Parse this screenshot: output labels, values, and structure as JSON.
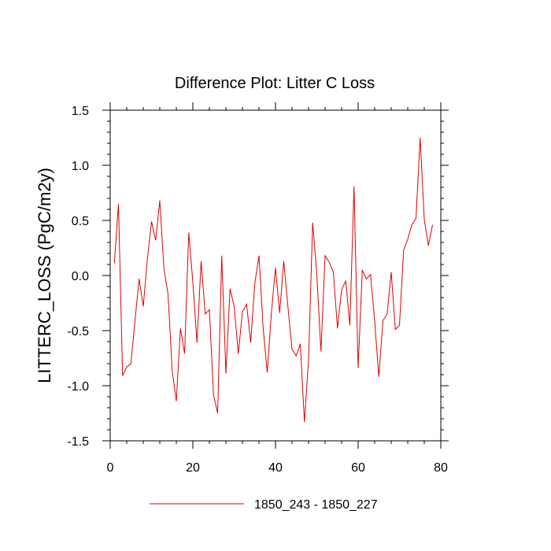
{
  "chart_data": {
    "type": "line",
    "title": "Difference Plot: Litter C Loss",
    "xlabel": "",
    "ylabel": "LITTERC_LOSS  (PgC/m2y)",
    "xlim": [
      0,
      80
    ],
    "ylim": [
      -1.5,
      1.5
    ],
    "xticks": [
      0,
      20,
      40,
      60,
      80
    ],
    "xtick_labels": [
      "0",
      "20",
      "40",
      "60",
      "80"
    ],
    "yticks": [
      -1.5,
      -1.0,
      -0.5,
      0.0,
      0.5,
      1.0,
      1.5
    ],
    "ytick_labels": [
      "-1.5",
      "-1.0",
      "-0.5",
      "0.0",
      "0.5",
      "1.0",
      "1.5"
    ],
    "grid": false,
    "legend_position": "bottom",
    "series": [
      {
        "name": "1850_243 - 1850_227",
        "color": "#e00000",
        "x": [
          1,
          2,
          3,
          4,
          5,
          6,
          7,
          8,
          9,
          10,
          11,
          12,
          13,
          14,
          15,
          16,
          17,
          18,
          19,
          20,
          21,
          22,
          23,
          24,
          25,
          26,
          27,
          28,
          29,
          30,
          31,
          32,
          33,
          34,
          35,
          36,
          37,
          38,
          39,
          40,
          41,
          42,
          43,
          44,
          45,
          46,
          47,
          48,
          49,
          50,
          51,
          52,
          53,
          54,
          55,
          56,
          57,
          58,
          59,
          60,
          61,
          62,
          63,
          64,
          65,
          66,
          67,
          68,
          69,
          70,
          71,
          72,
          73,
          74,
          75,
          76,
          77,
          78
        ],
        "values": [
          0.11,
          0.65,
          -0.91,
          -0.83,
          -0.8,
          -0.41,
          -0.03,
          -0.28,
          0.15,
          0.49,
          0.32,
          0.68,
          0.06,
          -0.17,
          -0.86,
          -1.14,
          -0.48,
          -0.71,
          0.39,
          -0.06,
          -0.61,
          0.13,
          -0.35,
          -0.31,
          -1.08,
          -1.25,
          0.18,
          -0.89,
          -0.12,
          -0.28,
          -0.71,
          -0.33,
          -0.26,
          -0.61,
          -0.07,
          0.18,
          -0.47,
          -0.88,
          -0.34,
          0.07,
          -0.34,
          0.13,
          -0.28,
          -0.67,
          -0.73,
          -0.62,
          -1.33,
          -0.76,
          0.48,
          0.01,
          -0.69,
          0.18,
          0.12,
          0.03,
          -0.48,
          -0.13,
          -0.05,
          -0.45,
          0.81,
          -0.84,
          0.05,
          -0.03,
          0.01,
          -0.41,
          -0.92,
          -0.41,
          -0.35,
          0.03,
          -0.49,
          -0.45,
          0.23,
          0.33,
          0.46,
          0.52,
          1.25,
          0.51,
          0.27,
          0.46
        ]
      }
    ]
  }
}
